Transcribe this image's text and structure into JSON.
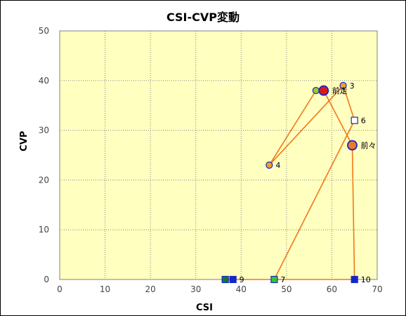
{
  "chart_data": {
    "type": "scatter",
    "title": "CSI-CVP変動",
    "xlabel": "CSI",
    "ylabel": "CVP",
    "xlim": [
      0,
      70
    ],
    "ylim": [
      0,
      50
    ],
    "xticks": [
      0,
      10,
      20,
      30,
      40,
      50,
      60,
      70
    ],
    "yticks": [
      0,
      10,
      20,
      30,
      40,
      50
    ],
    "grid": true,
    "legend": "none",
    "colors": {
      "plot_bg": "#ffffc0",
      "grid": "#888888",
      "line": "#f07818",
      "marker_border": "#1428c8",
      "orange_fill": "#f0a028",
      "deep_orange_fill": "#f07828",
      "red_fill": "#e01818",
      "green_fill": "#30c830",
      "lime_fill": "#a0c828",
      "dark_green_fill": "#107830",
      "blue_fill": "#1428c8",
      "white_fill": "#ffffff"
    },
    "path": [
      {
        "x": 58.2,
        "y": 38.0
      },
      {
        "x": 56.5,
        "y": 38.0
      },
      {
        "x": 46.2,
        "y": 23.0
      },
      {
        "x": 62.5,
        "y": 39.0
      },
      {
        "x": 65.0,
        "y": 32.0
      },
      {
        "x": 47.3,
        "y": 0.0
      },
      {
        "x": 36.5,
        "y": 0.0
      },
      {
        "x": 38.2,
        "y": 0.0
      },
      {
        "x": 65.0,
        "y": 0.0
      },
      {
        "x": 64.5,
        "y": 27.0
      },
      {
        "x": 58.2,
        "y": 38.0
      }
    ],
    "points": [
      {
        "x": 46.2,
        "y": 23.0,
        "label": "4",
        "marker": "circle",
        "fill": "orange_fill",
        "size": "small"
      },
      {
        "x": 62.5,
        "y": 39.0,
        "label": "3",
        "marker": "circle",
        "fill": "orange_fill",
        "size": "small"
      },
      {
        "x": 56.5,
        "y": 38.0,
        "label": "",
        "marker": "circle",
        "fill": "lime_fill",
        "size": "small"
      },
      {
        "x": 65.0,
        "y": 32.0,
        "label": "6",
        "marker": "square",
        "fill": "white_fill",
        "size": "small"
      },
      {
        "x": 64.5,
        "y": 27.0,
        "label": "前々",
        "marker": "circle",
        "fill": "deep_orange_fill",
        "size": "large"
      },
      {
        "x": 58.2,
        "y": 38.0,
        "label": "前走",
        "marker": "circle",
        "fill": "red_fill",
        "size": "large"
      },
      {
        "x": 47.3,
        "y": 0.0,
        "label": "7",
        "marker": "square",
        "fill": "green_fill",
        "size": "small"
      },
      {
        "x": 36.5,
        "y": 0.0,
        "label": "",
        "marker": "square",
        "fill": "dark_green_fill",
        "size": "small"
      },
      {
        "x": 38.2,
        "y": 0.0,
        "label": "9",
        "marker": "square",
        "fill": "blue_fill",
        "size": "small"
      },
      {
        "x": 65.0,
        "y": 0.0,
        "label": "10",
        "marker": "square",
        "fill": "blue_fill",
        "size": "small"
      }
    ]
  }
}
